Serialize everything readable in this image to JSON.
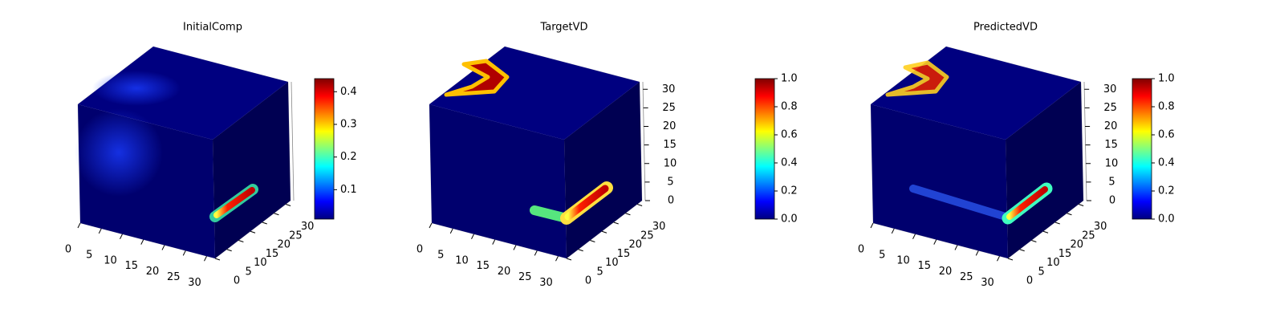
{
  "chart_data": [
    {
      "type": "voxel",
      "title": "InitialComp",
      "xlim": [
        0,
        32
      ],
      "xticks": [
        0,
        5,
        10,
        15,
        20,
        25,
        30
      ],
      "ylim": [
        0,
        32
      ],
      "yticks": [
        0,
        5,
        10,
        15,
        20,
        25,
        30
      ],
      "zlim": [
        0,
        32
      ],
      "colorbar": {
        "lim": [
          0.01,
          0.44
        ],
        "ticks": [
          0.1,
          0.2,
          0.3,
          0.4
        ]
      }
    },
    {
      "type": "voxel",
      "title": "TargetVD",
      "xlim": [
        0,
        32
      ],
      "xticks": [
        0,
        5,
        10,
        15,
        20,
        25,
        30
      ],
      "ylim": [
        0,
        32
      ],
      "yticks": [
        0,
        5,
        10,
        15,
        20,
        25,
        30
      ],
      "zlim": [
        0,
        32
      ],
      "zticks": [
        0,
        5,
        10,
        15,
        20,
        25,
        30
      ],
      "colorbar": {
        "lim": [
          0,
          1
        ],
        "ticks": [
          {
            "value": 0,
            "label": "0.0"
          },
          0.2,
          0.4,
          0.6,
          0.8,
          {
            "value": 1,
            "label": "1.0"
          }
        ]
      }
    },
    {
      "type": "voxel",
      "title": "PredictedVD",
      "xlim": [
        0,
        32
      ],
      "xticks": [
        0,
        5,
        10,
        15,
        20,
        25,
        30
      ],
      "ylim": [
        0,
        32
      ],
      "yticks": [
        0,
        5,
        10,
        15,
        20,
        25,
        30
      ],
      "zlim": [
        0,
        32
      ],
      "zticks": [
        0,
        5,
        10,
        15,
        20,
        25,
        30
      ],
      "colorbar": {
        "lim": [
          0,
          1
        ],
        "ticks": [
          {
            "value": 0,
            "label": "0.0"
          },
          0.2,
          0.4,
          0.6,
          0.8,
          {
            "value": 1,
            "label": "1.0"
          }
        ]
      }
    }
  ]
}
